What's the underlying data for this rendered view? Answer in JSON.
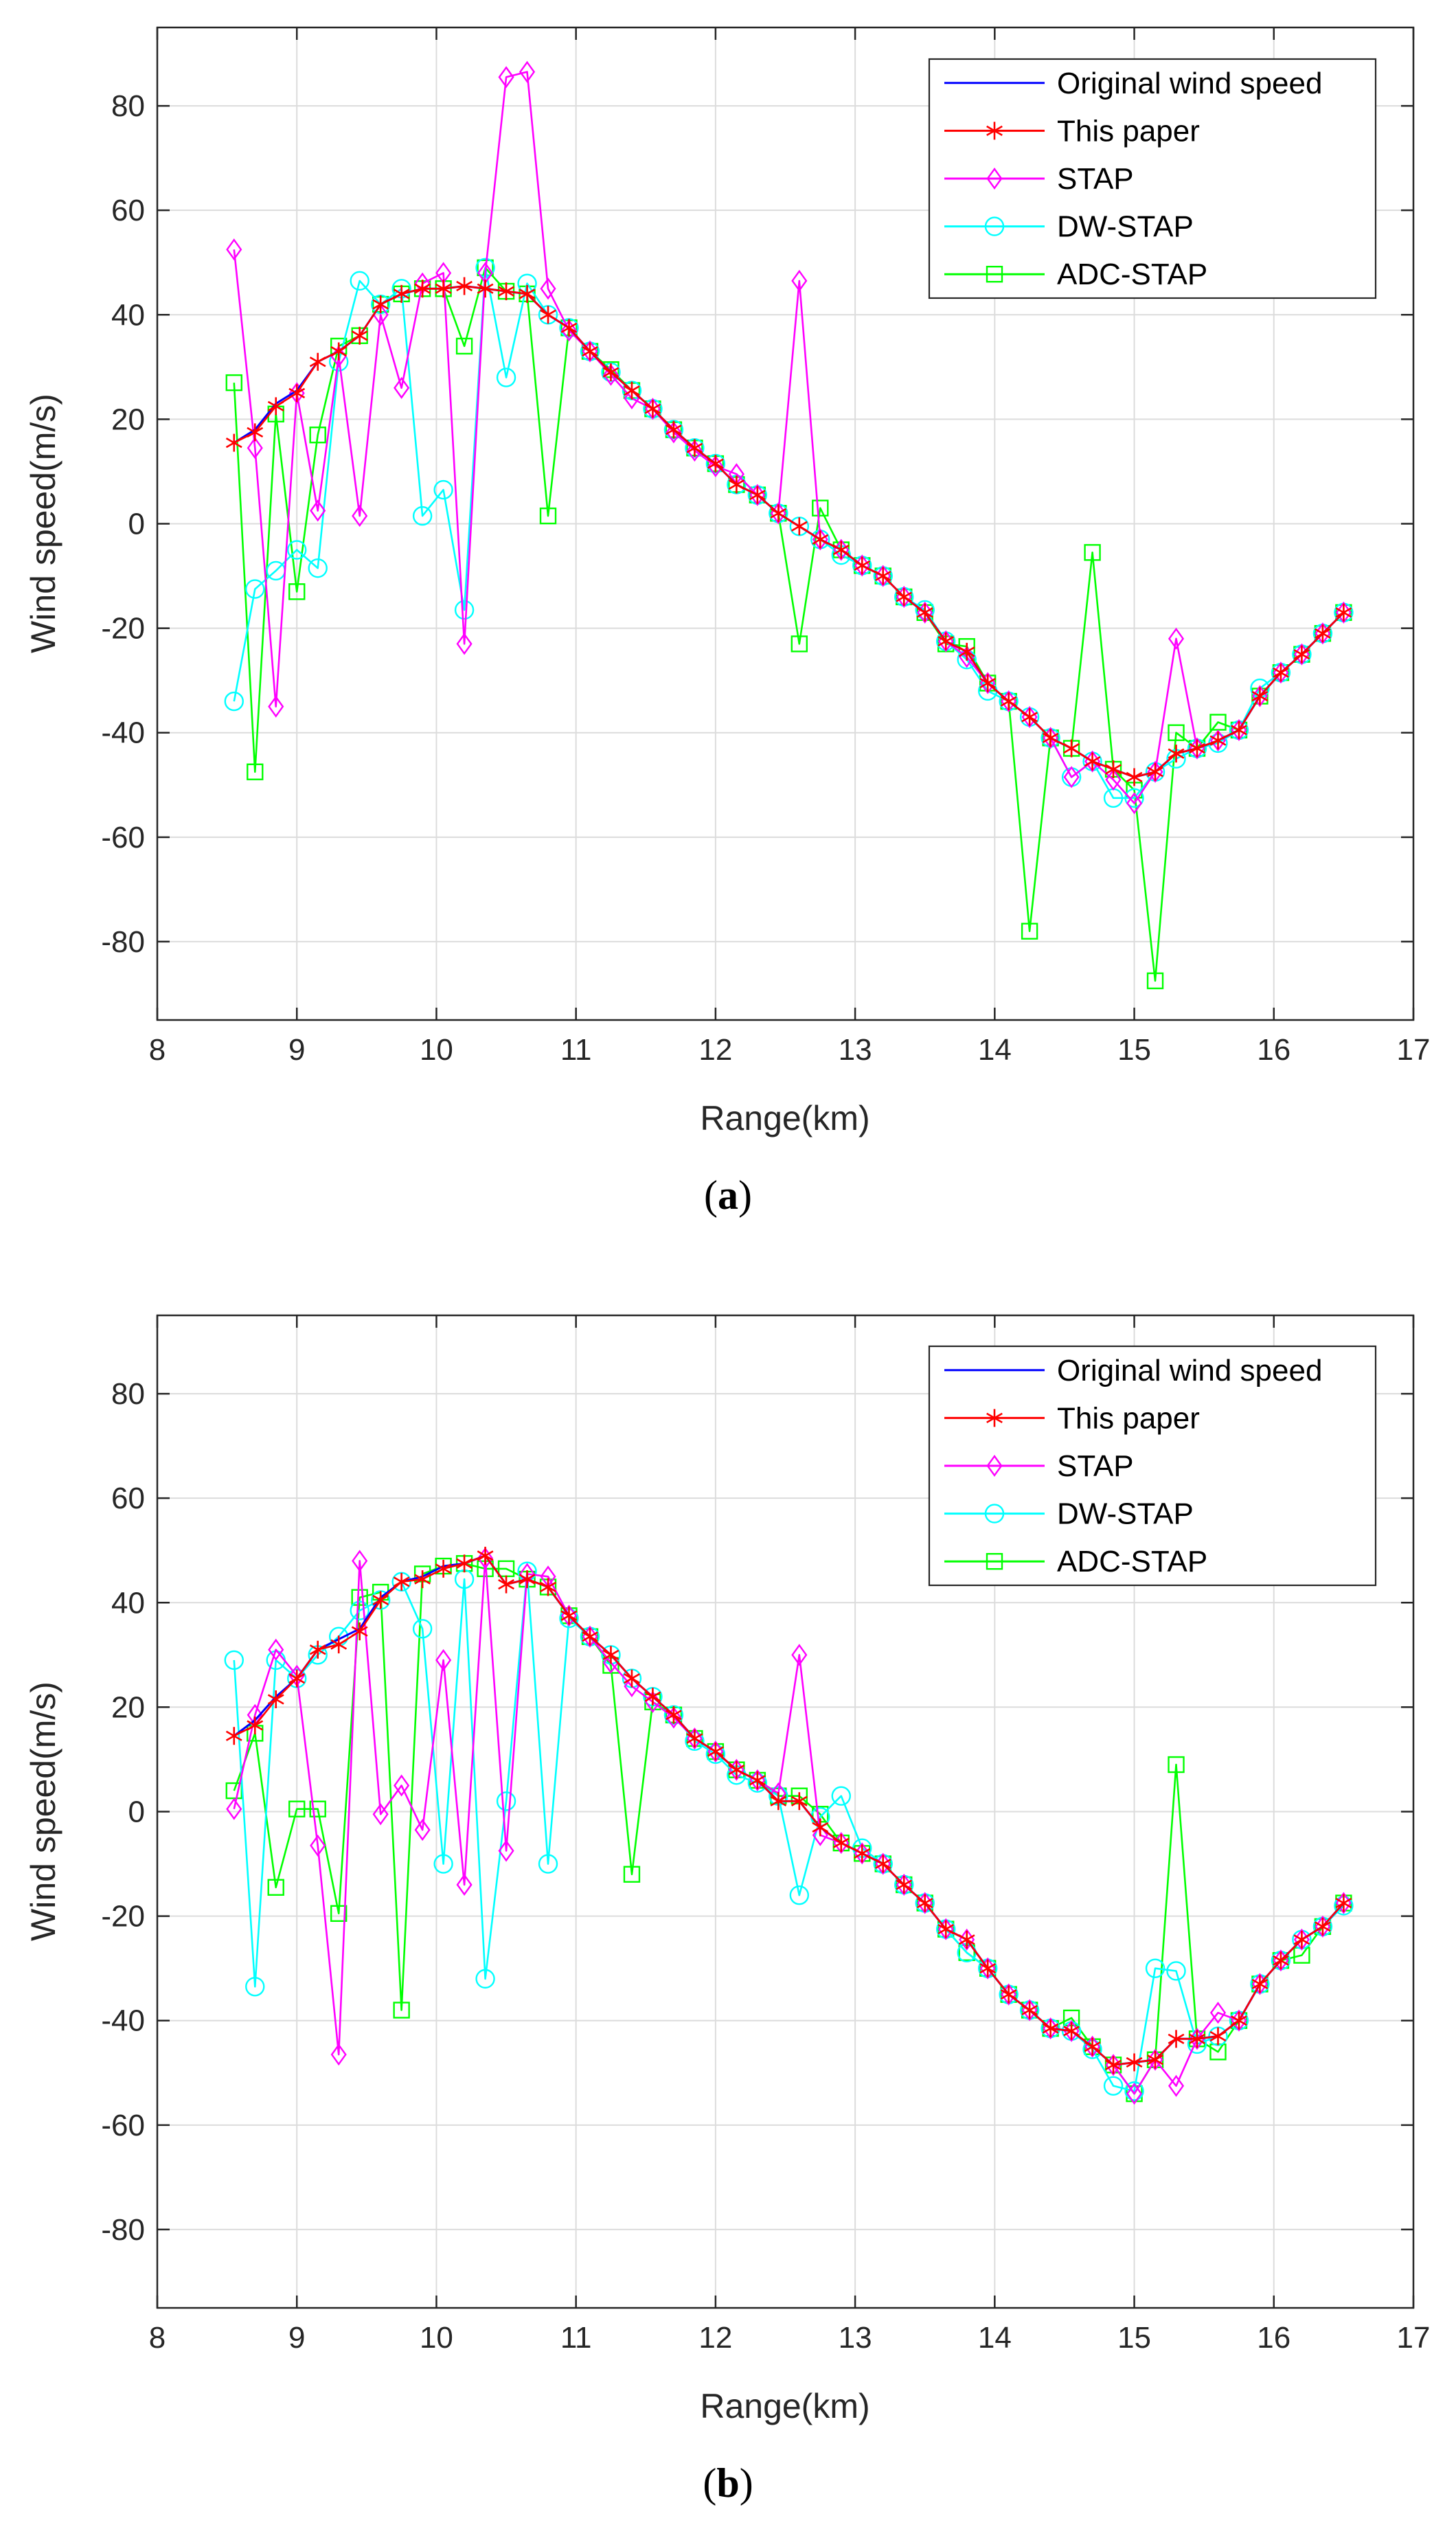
{
  "colors": {
    "original": "#0000ff",
    "this_paper": "#ff0000",
    "stap": "#ff00ff",
    "dw_stap": "#00ffff",
    "adc_stap": "#00ff00",
    "grid": "#dcdcdc",
    "axis": "#262626"
  },
  "chart_data": [
    {
      "type": "line",
      "panel_label": "a",
      "xlabel": "Range(km)",
      "ylabel": "Wind speed(m/s)",
      "xlim": [
        8,
        17
      ],
      "ylim": [
        -95,
        95
      ],
      "xticks": [
        8,
        9,
        10,
        11,
        12,
        13,
        14,
        15,
        16,
        17
      ],
      "yticks": [
        -80,
        -60,
        -40,
        -20,
        0,
        20,
        40,
        60,
        80
      ],
      "grid": true,
      "legend_position": "top-right",
      "x": [
        8.55,
        8.7,
        8.85,
        9.0,
        9.15,
        9.3,
        9.45,
        9.6,
        9.75,
        9.9,
        10.05,
        10.2,
        10.35,
        10.5,
        10.65,
        10.8,
        10.95,
        11.1,
        11.25,
        11.4,
        11.55,
        11.7,
        11.85,
        12.0,
        12.15,
        12.3,
        12.45,
        12.6,
        12.75,
        12.9,
        13.05,
        13.2,
        13.35,
        13.5,
        13.65,
        13.8,
        13.95,
        14.1,
        14.25,
        14.4,
        14.55,
        14.7,
        14.85,
        15.0,
        15.15,
        15.3,
        15.45,
        15.6,
        15.75,
        15.9,
        16.05,
        16.2,
        16.35,
        16.5
      ],
      "series": [
        {
          "name": "Original wind speed",
          "marker": "none",
          "values": [
            15.5,
            18,
            23,
            25.5,
            31,
            33,
            36,
            42,
            44,
            45,
            45,
            45.5,
            45,
            44.5,
            44,
            40,
            37.5,
            33,
            29,
            25.5,
            22,
            18,
            14.5,
            11.5,
            7.5,
            5.5,
            2,
            -0.5,
            -3,
            -5,
            -8,
            -10,
            -14,
            -17,
            -22.5,
            -24.5,
            -30.5,
            -34,
            -37,
            -41,
            -43,
            -45.5,
            -47,
            -48.5,
            -47.5,
            -44,
            -43,
            -41.5,
            -39.5,
            -33,
            -28.5,
            -25,
            -21,
            -17
          ]
        },
        {
          "name": "This paper",
          "marker": "asterisk",
          "values": [
            15.5,
            17.5,
            22.5,
            25,
            31,
            33,
            36,
            42,
            44,
            45,
            45,
            45.5,
            45,
            44.5,
            44,
            40,
            37.5,
            33,
            29,
            25.5,
            22,
            18,
            14.5,
            11.5,
            7.5,
            5.5,
            2,
            -0.5,
            -3,
            -5,
            -8,
            -10,
            -14,
            -17,
            -22.5,
            -24.5,
            -30.5,
            -34,
            -37,
            -41,
            -43,
            -45.5,
            -47,
            -48.5,
            -47.5,
            -44,
            -43,
            -41.5,
            -39.5,
            -33,
            -28.5,
            -25,
            -21,
            -17
          ]
        },
        {
          "name": "STAP",
          "marker": "diamond",
          "values": [
            52.5,
            14.5,
            -35,
            25,
            2.5,
            32,
            1.5,
            40,
            26,
            46,
            48,
            -23,
            48,
            85.5,
            86.5,
            45,
            37,
            33,
            28.5,
            24,
            22,
            17.5,
            14,
            11,
            9.5,
            5.5,
            2,
            46.5,
            -3,
            -5,
            -8,
            -10,
            -14,
            -17,
            -22.5,
            -25.5,
            -30.5,
            -34,
            -37,
            -41,
            -48.5,
            -45.5,
            -49,
            -53.5,
            -47.5,
            -22,
            -43,
            -41.5,
            -39.5,
            -33,
            -28.5,
            -25,
            -21,
            -17
          ]
        },
        {
          "name": "DW-STAP",
          "marker": "circle",
          "values": [
            -34,
            -12.5,
            -9,
            -5,
            -8.5,
            31,
            46.5,
            42,
            45,
            1.5,
            6.5,
            -16.5,
            49,
            28,
            46,
            40,
            37.5,
            33,
            29,
            25.5,
            22,
            18,
            14.5,
            11.5,
            7.5,
            5.5,
            2,
            -0.5,
            -3,
            -6,
            -8,
            -10,
            -14,
            -16.5,
            -22.5,
            -26,
            -32,
            -34,
            -37,
            -41,
            -48.5,
            -45.5,
            -52.5,
            -52.5,
            -47.5,
            -45,
            -43,
            -42,
            -39.5,
            -31.5,
            -28.5,
            -25,
            -21,
            -17
          ]
        },
        {
          "name": "ADC-STAP",
          "marker": "square",
          "values": [
            27,
            -47.5,
            21,
            -13,
            17,
            34,
            36,
            42,
            44,
            45,
            45,
            34,
            49,
            44.5,
            44,
            1.5,
            37.5,
            33,
            29.5,
            25.5,
            22,
            18,
            14.5,
            11.5,
            7.5,
            5.5,
            2,
            -23,
            3,
            -5,
            -8,
            -10,
            -14,
            -17,
            -23,
            -23.5,
            -30.5,
            -34,
            -78,
            -41,
            -43,
            -5.5,
            -47,
            -51,
            -87.5,
            -40,
            -43,
            -38,
            -39.5,
            -33,
            -28.5,
            -25,
            -21,
            -17
          ]
        }
      ]
    },
    {
      "type": "line",
      "panel_label": "b",
      "xlabel": "Range(km)",
      "ylabel": "Wind speed(m/s)",
      "xlim": [
        8,
        17
      ],
      "ylim": [
        -95,
        95
      ],
      "xticks": [
        8,
        9,
        10,
        11,
        12,
        13,
        14,
        15,
        16,
        17
      ],
      "yticks": [
        -80,
        -60,
        -40,
        -20,
        0,
        20,
        40,
        60,
        80
      ],
      "grid": true,
      "legend_position": "top-right",
      "x": [
        8.55,
        8.7,
        8.85,
        9.0,
        9.15,
        9.3,
        9.45,
        9.6,
        9.75,
        9.9,
        10.05,
        10.2,
        10.35,
        10.5,
        10.65,
        10.8,
        10.95,
        11.1,
        11.25,
        11.4,
        11.55,
        11.7,
        11.85,
        12.0,
        12.15,
        12.3,
        12.45,
        12.6,
        12.75,
        12.9,
        13.05,
        13.2,
        13.35,
        13.5,
        13.65,
        13.8,
        13.95,
        14.1,
        14.25,
        14.4,
        14.55,
        14.7,
        14.85,
        15.0,
        15.15,
        15.3,
        15.45,
        15.6,
        15.75,
        15.9,
        16.05,
        16.2,
        16.35,
        16.5
      ],
      "series": [
        {
          "name": "Original wind speed",
          "marker": "none",
          "values": [
            14.5,
            17.5,
            22,
            25.5,
            31,
            33,
            35,
            41,
            44,
            45,
            47,
            47.5,
            49,
            43.5,
            44.5,
            43,
            37.5,
            33.5,
            30,
            25.5,
            22,
            18.5,
            14,
            11.5,
            8,
            6,
            2,
            2,
            -3,
            -6,
            -8,
            -10,
            -14,
            -17.5,
            -22.5,
            -24.5,
            -30,
            -35,
            -38,
            -41.5,
            -42,
            -45,
            -48.5,
            -48,
            -47.5,
            -43.5,
            -43.5,
            -43,
            -40,
            -33,
            -28.5,
            -24.5,
            -22,
            -17.5
          ]
        },
        {
          "name": "This paper",
          "marker": "asterisk",
          "values": [
            14.5,
            16.5,
            21.5,
            25.5,
            31,
            32,
            34.5,
            40.5,
            44,
            44.5,
            46.5,
            47.5,
            49,
            43.5,
            44.5,
            43,
            37.5,
            33.5,
            30,
            25.5,
            22,
            18.5,
            14,
            11.5,
            8,
            6,
            2,
            2,
            -3,
            -6,
            -8,
            -10,
            -14,
            -17.5,
            -22.5,
            -24.5,
            -30,
            -35,
            -38,
            -41.5,
            -42,
            -45,
            -48.5,
            -48,
            -47.5,
            -43.5,
            -43.5,
            -43,
            -40,
            -33,
            -28.5,
            -24.5,
            -22,
            -17.5
          ]
        },
        {
          "name": "STAP",
          "marker": "diamond",
          "values": [
            0.5,
            18.5,
            31,
            26,
            -6.5,
            -46.5,
            48,
            -0.5,
            5,
            -3.5,
            29,
            -14,
            48.5,
            -7.5,
            45.5,
            45,
            37.5,
            33.5,
            28.5,
            24,
            21,
            18,
            14,
            11.5,
            8,
            6,
            3.5,
            30,
            -4.5,
            -6,
            -8,
            -10,
            -14,
            -17.5,
            -22.5,
            -24.5,
            -30,
            -35,
            -38,
            -41.5,
            -42,
            -45,
            -48.5,
            -54,
            -47.5,
            -52.5,
            -43.5,
            -38.5,
            -40,
            -33,
            -28.5,
            -24.5,
            -22,
            -17.5
          ]
        },
        {
          "name": "DW-STAP",
          "marker": "circle",
          "values": [
            29,
            -33.5,
            29,
            25.5,
            30,
            33.5,
            38.5,
            40.5,
            44,
            35,
            -10,
            44.5,
            -32,
            2,
            46,
            -10,
            37,
            33.5,
            30,
            25.5,
            22,
            18.5,
            13.5,
            11,
            7,
            5.5,
            3,
            -16,
            -1,
            3,
            -7,
            -10,
            -14,
            -17.5,
            -22.5,
            -27,
            -30,
            -35,
            -38,
            -41.5,
            -42,
            -45.5,
            -52.5,
            -53.5,
            -30,
            -30.5,
            -44.5,
            -43,
            -40,
            -33,
            -28.5,
            -24.5,
            -22,
            -18
          ]
        },
        {
          "name": "ADC-STAP",
          "marker": "square",
          "values": [
            4,
            15,
            -14.5,
            0.5,
            0.5,
            -19.5,
            41,
            42,
            -38,
            45.5,
            47,
            47.5,
            46.5,
            46.5,
            44.5,
            43,
            37.5,
            33.5,
            28,
            -12,
            21,
            18.5,
            14,
            11.5,
            8,
            6,
            3,
            3,
            -0.5,
            -6,
            -8,
            -10,
            -14,
            -17.5,
            -22.5,
            -27,
            -30,
            -35,
            -38,
            -41.5,
            -39.5,
            -45,
            -48.5,
            -54,
            -47.5,
            9,
            -43.5,
            -46,
            -40,
            -33,
            -28.5,
            -27.5,
            -22,
            -17.5
          ]
        }
      ]
    }
  ]
}
